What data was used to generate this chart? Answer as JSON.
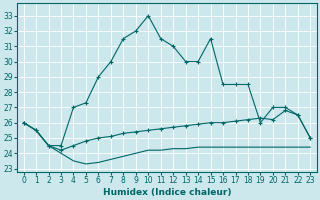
{
  "xlabel": "Humidex (Indice chaleur)",
  "background_color": "#cce8ec",
  "line_color": "#006666",
  "grid_color": "#ffffff",
  "xlim": [
    -0.5,
    23.5
  ],
  "ylim": [
    22.8,
    33.8
  ],
  "xticks": [
    0,
    1,
    2,
    3,
    4,
    5,
    6,
    7,
    8,
    9,
    10,
    11,
    12,
    13,
    14,
    15,
    16,
    17,
    18,
    19,
    20,
    21,
    22,
    23
  ],
  "yticks": [
    23,
    24,
    25,
    26,
    27,
    28,
    29,
    30,
    31,
    32,
    33
  ],
  "series1_x": [
    0,
    1,
    2,
    3,
    4,
    5,
    6,
    7,
    8,
    9,
    10,
    11,
    12,
    13,
    14,
    15,
    16,
    17,
    18,
    19,
    20,
    21,
    22,
    23
  ],
  "series1_y": [
    26.0,
    25.5,
    24.5,
    24.5,
    27.0,
    27.3,
    29.0,
    30.0,
    31.5,
    32.0,
    33.0,
    31.5,
    31.0,
    30.0,
    30.0,
    31.5,
    28.5,
    28.5,
    28.5,
    26.0,
    27.0,
    27.0,
    26.5,
    25.0
  ],
  "series2_x": [
    0,
    1,
    2,
    3,
    4,
    5,
    6,
    7,
    8,
    9,
    10,
    11,
    12,
    13,
    14,
    15,
    16,
    17,
    18,
    19,
    20,
    21,
    22,
    23
  ],
  "series2_y": [
    26.0,
    25.5,
    24.5,
    24.2,
    24.5,
    24.8,
    25.0,
    25.1,
    25.3,
    25.4,
    25.5,
    25.6,
    25.7,
    25.8,
    25.9,
    26.0,
    26.0,
    26.1,
    26.2,
    26.3,
    26.2,
    26.8,
    26.5,
    25.0
  ],
  "series3_x": [
    0,
    1,
    2,
    3,
    4,
    5,
    6,
    7,
    8,
    9,
    10,
    11,
    12,
    13,
    14,
    15,
    16,
    17,
    18,
    19,
    20,
    21,
    22,
    23
  ],
  "series3_y": [
    26.0,
    25.5,
    24.5,
    24.0,
    23.5,
    23.3,
    23.4,
    23.6,
    23.8,
    24.0,
    24.2,
    24.2,
    24.3,
    24.3,
    24.4,
    24.4,
    24.4,
    24.4,
    24.4,
    24.4,
    24.4,
    24.4,
    24.4,
    24.4
  ]
}
